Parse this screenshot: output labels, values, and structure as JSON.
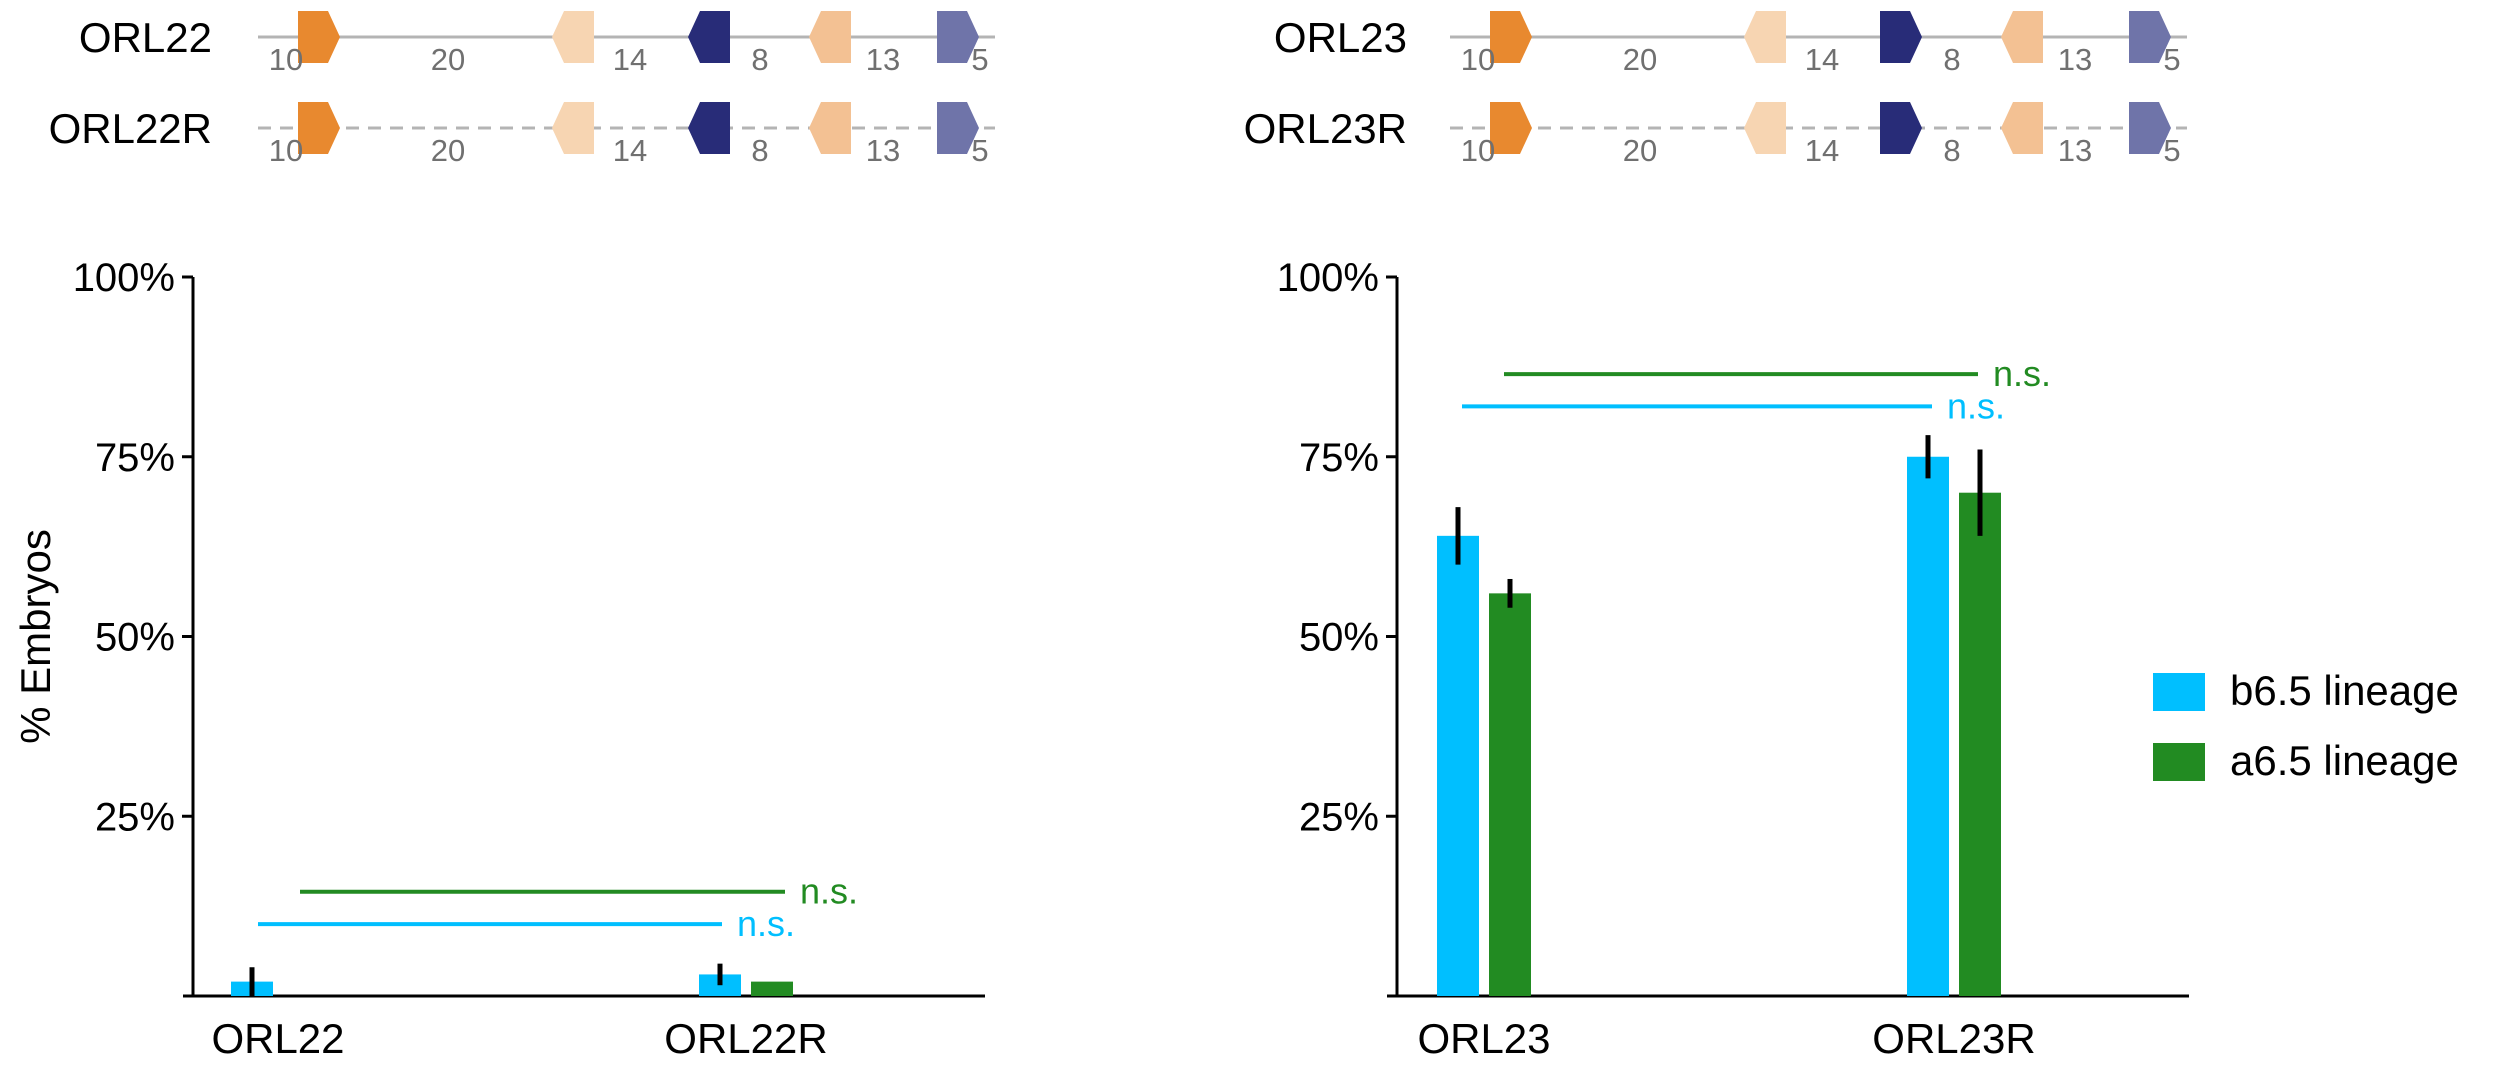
{
  "colors": {
    "b65": "#00bfff",
    "a65": "#228b22",
    "axis": "#000000",
    "spacer_num": "#707070",
    "line": "#b4b4b4",
    "err": "#000000"
  },
  "constructs": [
    {
      "label": "ORL22",
      "dashed": false,
      "spacers": [
        "10",
        "20",
        "14",
        "8",
        "13",
        "5"
      ],
      "sites": [
        {
          "color": "#e8892f",
          "dir": "right"
        },
        {
          "color": "#f7d5b2",
          "dir": "left"
        },
        {
          "color": "#282c78",
          "dir": "left"
        },
        {
          "color": "#f3c193",
          "dir": "left"
        },
        {
          "color": "#6f74a9",
          "dir": "right"
        }
      ]
    },
    {
      "label": "ORL22R",
      "dashed": true,
      "spacers": [
        "10",
        "20",
        "14",
        "8",
        "13",
        "5"
      ],
      "sites": [
        {
          "color": "#e8892f",
          "dir": "right"
        },
        {
          "color": "#f7d5b2",
          "dir": "left"
        },
        {
          "color": "#282c78",
          "dir": "left"
        },
        {
          "color": "#f3c193",
          "dir": "left"
        },
        {
          "color": "#6f74a9",
          "dir": "right"
        }
      ]
    },
    {
      "label": "ORL23",
      "dashed": false,
      "spacers": [
        "10",
        "20",
        "14",
        "8",
        "13",
        "5"
      ],
      "sites": [
        {
          "color": "#e8892f",
          "dir": "right"
        },
        {
          "color": "#f7d5b2",
          "dir": "left"
        },
        {
          "color": "#282c78",
          "dir": "right"
        },
        {
          "color": "#f3c193",
          "dir": "left"
        },
        {
          "color": "#6f74a9",
          "dir": "right"
        }
      ]
    },
    {
      "label": "ORL23R",
      "dashed": true,
      "spacers": [
        "10",
        "20",
        "14",
        "8",
        "13",
        "5"
      ],
      "sites": [
        {
          "color": "#e8892f",
          "dir": "right"
        },
        {
          "color": "#f7d5b2",
          "dir": "left"
        },
        {
          "color": "#282c78",
          "dir": "right"
        },
        {
          "color": "#f3c193",
          "dir": "left"
        },
        {
          "color": "#6f74a9",
          "dir": "right"
        }
      ]
    }
  ],
  "chart_data": [
    {
      "type": "bar",
      "categories": [
        "ORL22",
        "ORL22R"
      ],
      "ylabel": "% Embryos",
      "ylim": [
        0,
        100
      ],
      "yticks": [
        {
          "v": 25,
          "label": "25%"
        },
        {
          "v": 50,
          "label": "50%"
        },
        {
          "v": 75,
          "label": "75%"
        },
        {
          "v": 100,
          "label": "100%"
        }
      ],
      "series": [
        {
          "name": "b6.5 lineage",
          "color": "#00bfff",
          "values": [
            2,
            3
          ],
          "err": [
            2,
            1.5
          ]
        },
        {
          "name": "a6.5 lineage",
          "color": "#228b22",
          "values": [
            0,
            2
          ],
          "err": [
            0,
            0
          ]
        }
      ],
      "annotations": [
        {
          "text": "n.s.",
          "color": "#00bfff",
          "y": 10
        },
        {
          "text": "n.s.",
          "color": "#228b22",
          "y": 14.5
        }
      ]
    },
    {
      "type": "bar",
      "categories": [
        "ORL23",
        "ORL23R"
      ],
      "ylabel": "",
      "ylim": [
        0,
        100
      ],
      "yticks": [
        {
          "v": 25,
          "label": "25%"
        },
        {
          "v": 50,
          "label": "50%"
        },
        {
          "v": 75,
          "label": "75%"
        },
        {
          "v": 100,
          "label": "100%"
        }
      ],
      "series": [
        {
          "name": "b6.5 lineage",
          "color": "#00bfff",
          "values": [
            64,
            75
          ],
          "err": [
            4,
            3
          ]
        },
        {
          "name": "a6.5 lineage",
          "color": "#228b22",
          "values": [
            56,
            70
          ],
          "err": [
            2,
            6
          ]
        }
      ],
      "annotations": [
        {
          "text": "n.s.",
          "color": "#00bfff",
          "y": 82
        },
        {
          "text": "n.s.",
          "color": "#228b22",
          "y": 86.5
        }
      ]
    }
  ],
  "legend": [
    {
      "name": "b6.5 lineage",
      "color": "#00bfff"
    },
    {
      "name": "a6.5 lineage",
      "color": "#228b22"
    }
  ]
}
